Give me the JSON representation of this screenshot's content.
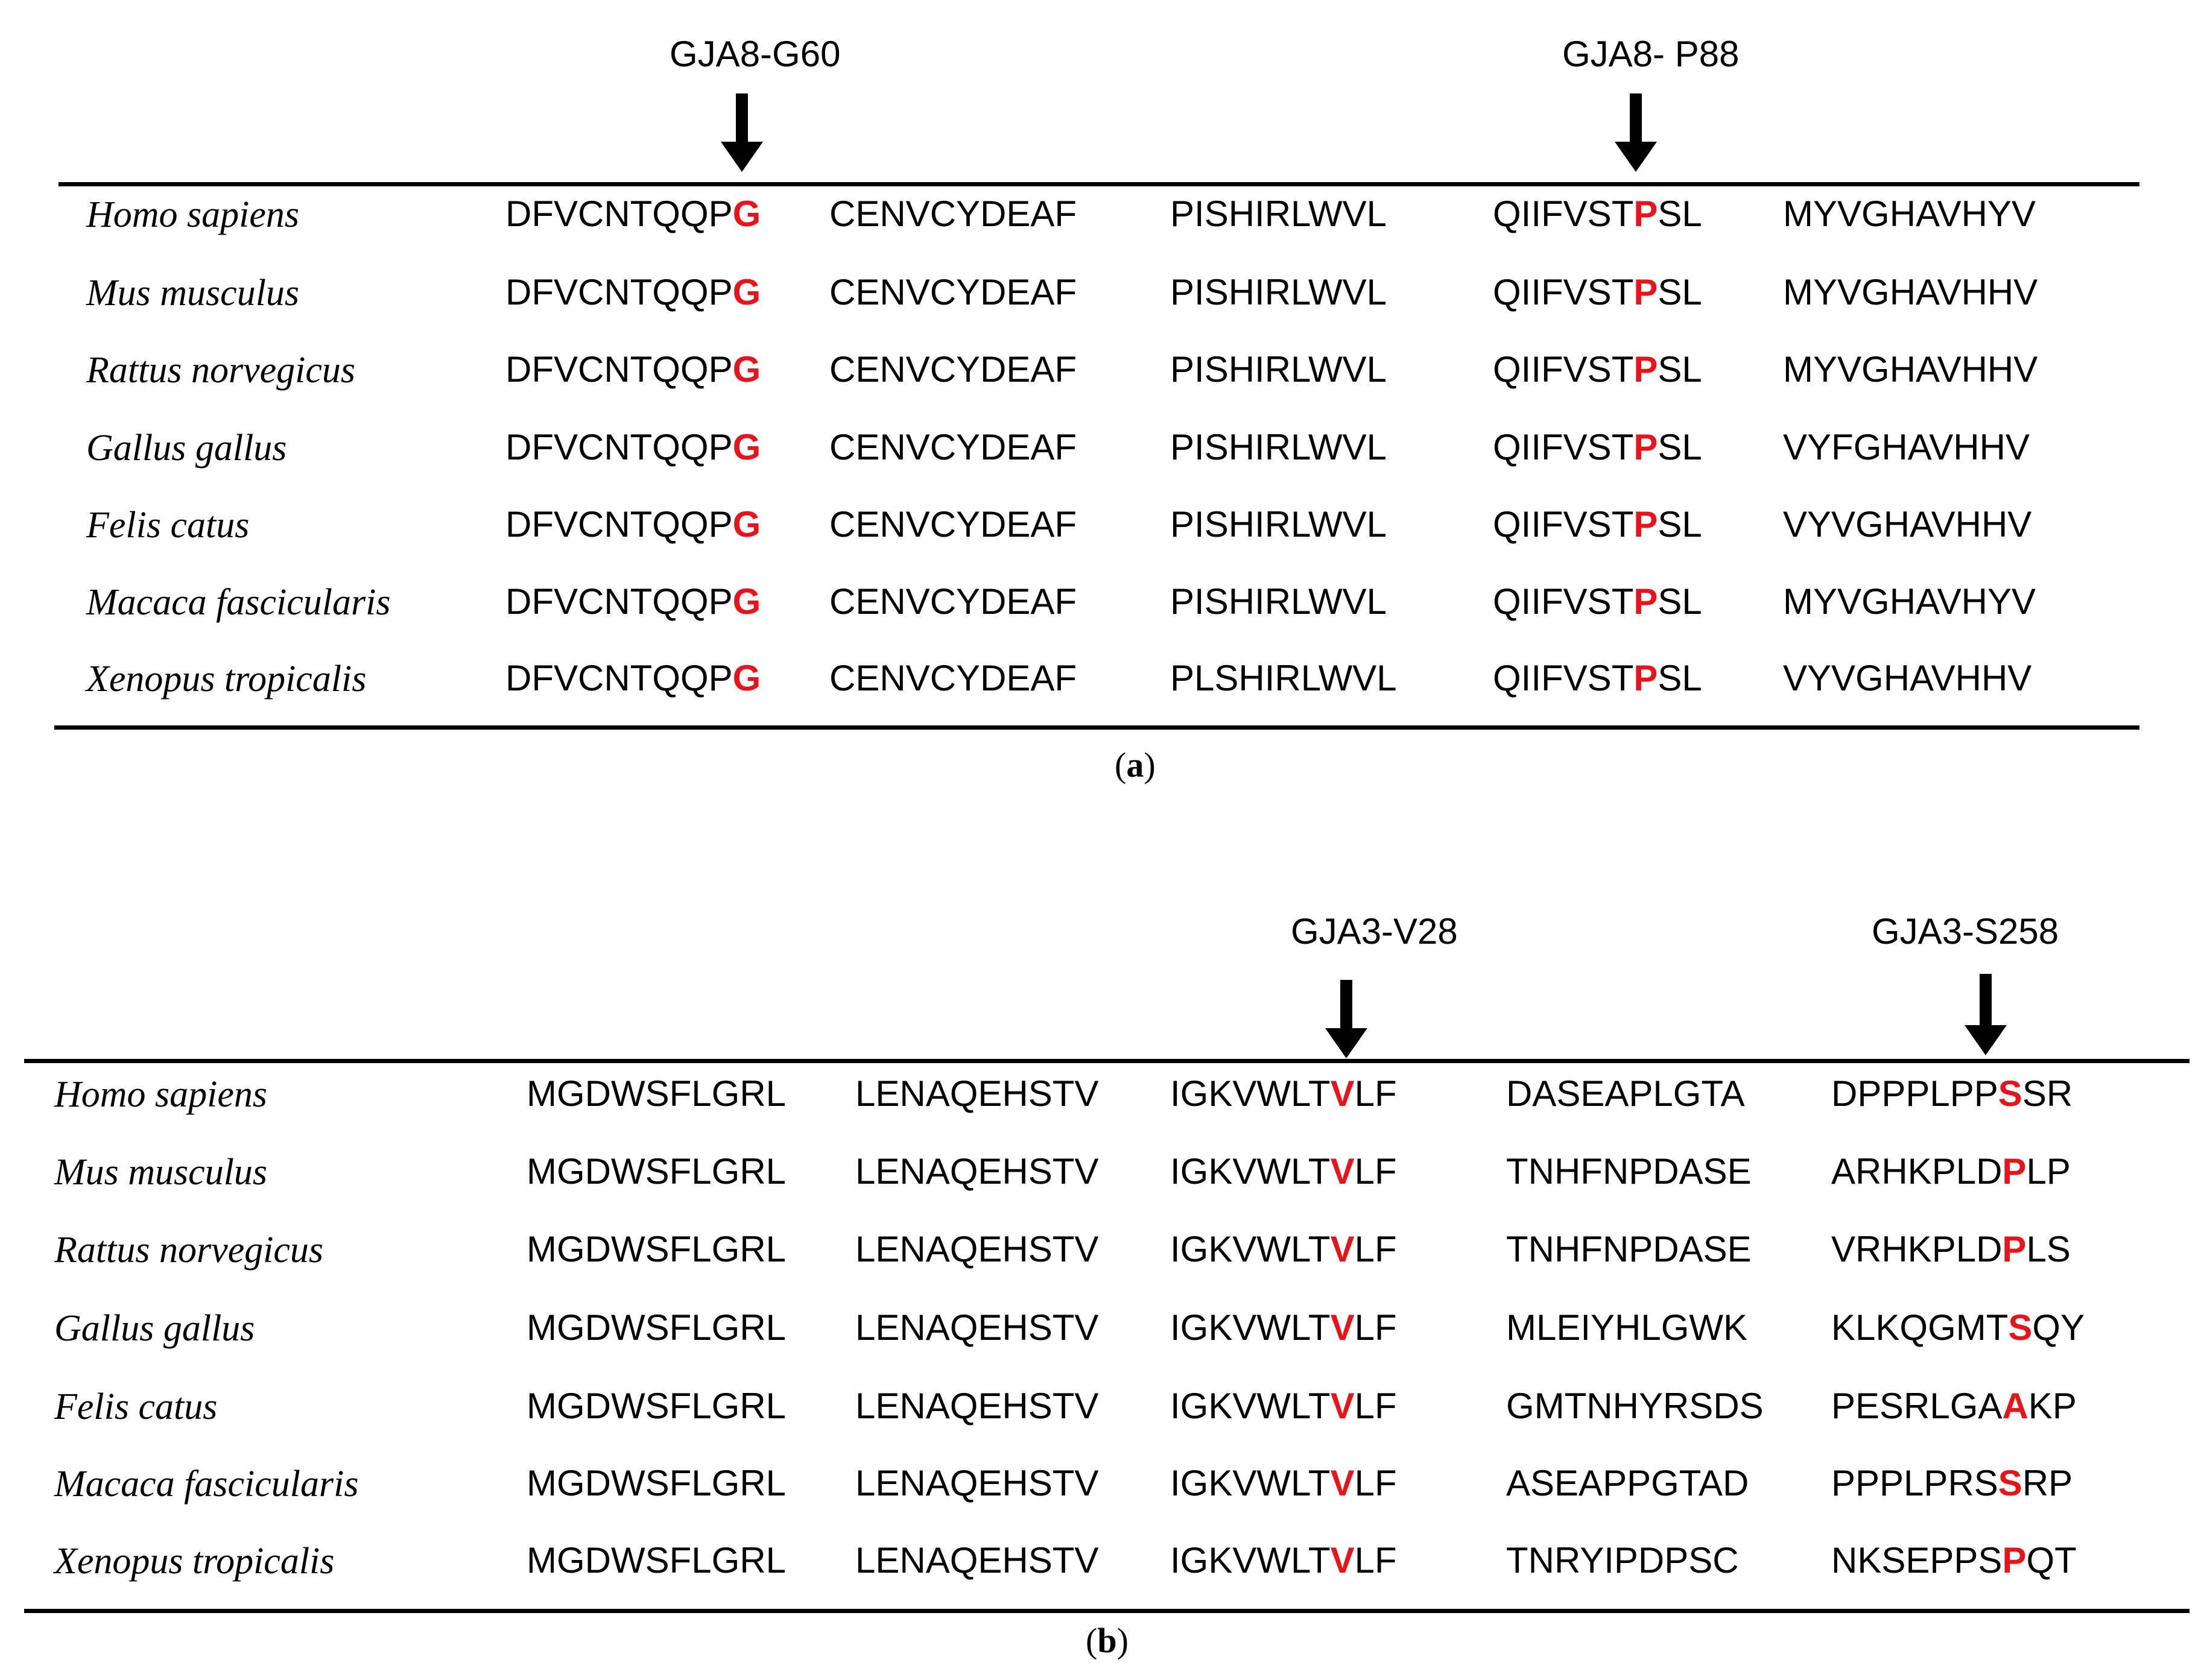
{
  "panel_a": {
    "markers": [
      "GJA8-G60",
      "GJA8- P88"
    ],
    "caption_label": "a",
    "highlight_color": "#e8141c",
    "rows": [
      {
        "species": "Homo sapiens",
        "seqs": [
          "DFVCNTQQP|G|",
          "CENVCYDEAF",
          "PISHIRLWVL",
          "QIIFVST|P|SL",
          "MYVGHAVHYV"
        ]
      },
      {
        "species": "Mus musculus",
        "seqs": [
          "DFVCNTQQP|G|",
          "CENVCYDEAF",
          "PISHIRLWVL",
          "QIIFVST|P|SL",
          "MYVGHAVHHV"
        ]
      },
      {
        "species": "Rattus norvegicus",
        "seqs": [
          "DFVCNTQQP|G|",
          "CENVCYDEAF",
          "PISHIRLWVL",
          "QIIFVST|P|SL",
          "MYVGHAVHHV"
        ]
      },
      {
        "species": "Gallus gallus",
        "seqs": [
          "DFVCNTQQP|G|",
          "CENVCYDEAF",
          "PISHIRLWVL",
          "QIIFVST|P|SL",
          "VYFGHAVHHV"
        ]
      },
      {
        "species": "Felis catus",
        "seqs": [
          "DFVCNTQQP|G|",
          "CENVCYDEAF",
          "PISHIRLWVL",
          "QIIFVST|P|SL",
          "VYVGHAVHHV"
        ]
      },
      {
        "species": "Macaca fascicularis",
        "seqs": [
          "DFVCNTQQP|G|",
          "CENVCYDEAF",
          "PISHIRLWVL",
          "QIIFVST|P|SL",
          "MYVGHAVHYV"
        ]
      },
      {
        "species": "Xenopus tropicalis",
        "seqs": [
          "DFVCNTQQP|G|",
          "CENVCYDEAF",
          "PLSHIRLWVL",
          "QIIFVST|P|SL",
          "VYVGHAVHHV"
        ]
      }
    ]
  },
  "panel_b": {
    "markers": [
      "GJA3-V28",
      "GJA3-S258"
    ],
    "caption_label": "b",
    "highlight_color": "#e8141c",
    "rows": [
      {
        "species": "Homo sapiens",
        "seqs": [
          "MGDWSFLGRL",
          "LENAQEHSTV",
          "IGKVWLT|V|LF",
          "DASEAPLGTA",
          "DPPPLPP|S|SR"
        ]
      },
      {
        "species": "Mus musculus",
        "seqs": [
          "MGDWSFLGRL",
          "LENAQEHSTV",
          "IGKVWLT|V|LF",
          "TNHFNPDASE",
          "ARHKPLD|P|LP"
        ]
      },
      {
        "species": "Rattus norvegicus",
        "seqs": [
          "MGDWSFLGRL",
          "LENAQEHSTV",
          "IGKVWLT|V|LF",
          "TNHFNPDASE",
          "VRHKPLD|P|LS"
        ]
      },
      {
        "species": "Gallus gallus",
        "seqs": [
          "MGDWSFLGRL",
          "LENAQEHSTV",
          "IGKVWLT|V|LF",
          "MLEIYHLGWK",
          "KLKQGMT|S|QY"
        ]
      },
      {
        "species": "Felis catus",
        "seqs": [
          "MGDWSFLGRL",
          "LENAQEHSTV",
          "IGKVWLT|V|LF",
          "GMTNHYRSDS",
          "PESRLGA|A|KP"
        ]
      },
      {
        "species": "Macaca fascicularis",
        "seqs": [
          "MGDWSFLGRL",
          "LENAQEHSTV",
          "IGKVWLT|V|LF",
          "ASEAPPGTAD",
          "PPPLPRS|S|RP"
        ]
      },
      {
        "species": "Xenopus tropicalis",
        "seqs": [
          "MGDWSFLGRL",
          "LENAQEHSTV",
          "IGKVWLT|V|LF",
          "TNRYIPDPSC",
          "NKSEPPS|P|QT"
        ]
      }
    ]
  }
}
